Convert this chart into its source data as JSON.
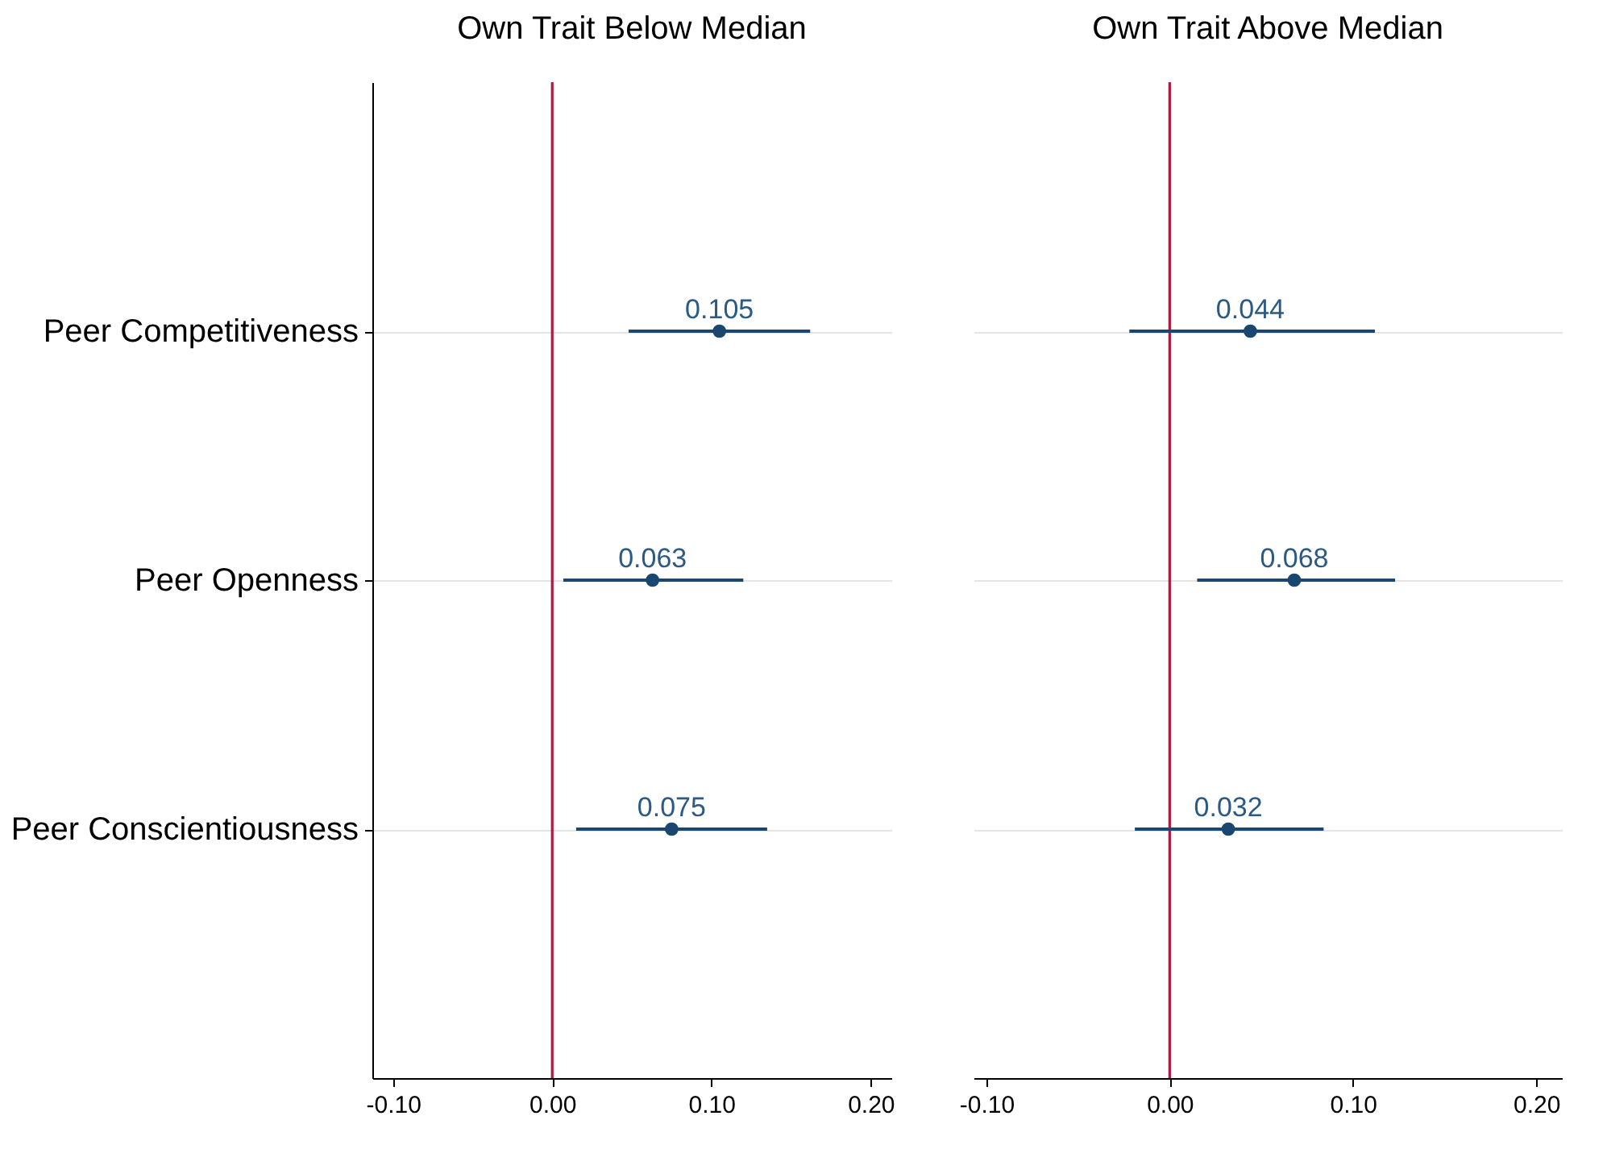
{
  "chart_data": [
    {
      "type": "scatter",
      "orientation": "horizontal",
      "title": "Own Trait Below Median",
      "categories": [
        "Peer Competitiveness",
        "Peer Openness",
        "Peer Conscientiousness"
      ],
      "series": [
        {
          "color": "#1a476f",
          "values": [
            0.105,
            0.063,
            0.075
          ],
          "errors": [
            [
              0.048,
              0.162
            ],
            [
              0.007,
              0.12
            ],
            [
              0.015,
              0.135
            ]
          ]
        }
      ],
      "xlim": [
        -0.113,
        0.213
      ],
      "xticks": [
        {
          "value": -0.1,
          "label": "-0.10"
        },
        {
          "value": 0,
          "label": "0.00"
        },
        {
          "value": 0.1,
          "label": "0.10"
        },
        {
          "value": 0.2,
          "label": "0.20"
        }
      ],
      "ref_lines": [
        {
          "axis": "x",
          "value": 0,
          "color": "#b0183f"
        }
      ],
      "grid": "y",
      "marker": "circle",
      "data_labels": true
    },
    {
      "type": "scatter",
      "orientation": "horizontal",
      "title": "Own Trait Above Median",
      "categories": [
        null,
        null,
        null
      ],
      "series": [
        {
          "color": "#1a476f",
          "values": [
            0.044,
            0.068,
            0.032
          ],
          "errors": [
            [
              -0.022,
              0.112
            ],
            [
              0.015,
              0.123
            ],
            [
              -0.019,
              0.084
            ]
          ]
        }
      ],
      "xlim": [
        -0.107,
        0.214
      ],
      "xticks": [
        {
          "value": -0.1,
          "label": "-0.10"
        },
        {
          "value": 0,
          "label": "0.00"
        },
        {
          "value": 0.1,
          "label": "0.10"
        },
        {
          "value": 0.2,
          "label": "0.20"
        }
      ],
      "ref_lines": [
        {
          "axis": "x",
          "value": 0,
          "color": "#b0183f"
        }
      ],
      "grid": "y",
      "marker": "circle",
      "data_labels": true,
      "tick_labels": "x"
    }
  ]
}
